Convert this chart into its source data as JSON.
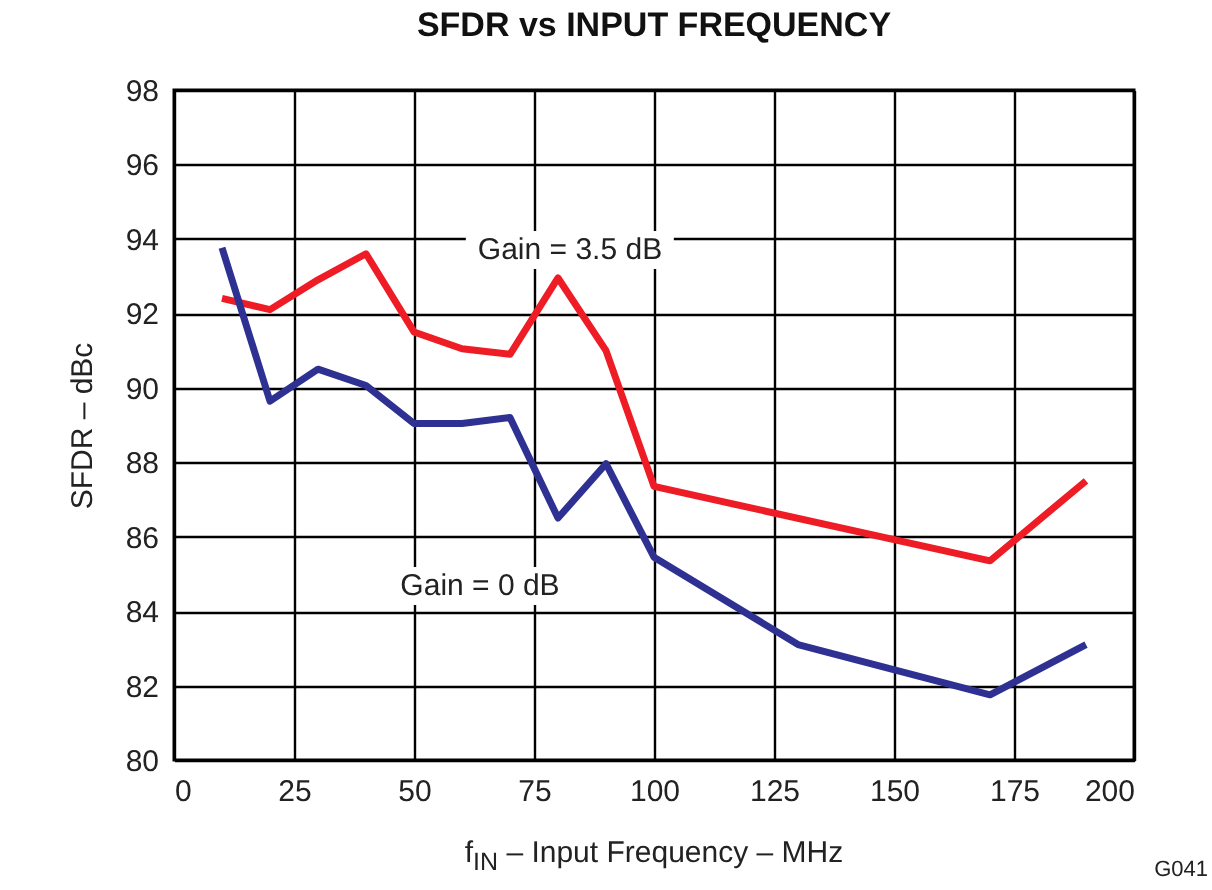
{
  "chart_data": {
    "type": "line",
    "title": "SFDR vs INPUT FREQUENCY",
    "xlabel": "f$_{IN}$ – Input Frequency – MHz",
    "ylabel": "SFDR – dBc",
    "x": [
      10,
      20,
      30,
      40,
      50,
      60,
      70,
      80,
      90,
      100,
      130,
      170,
      190
    ],
    "series": [
      {
        "color": "#ee1c25",
        "x": [
          10,
          20,
          30,
          40,
          50,
          60,
          70,
          80,
          90,
          100,
          170,
          190
        ],
        "values": [
          92.4,
          92.1,
          92.9,
          93.6,
          91.5,
          91.05,
          90.9,
          92.95,
          91.0,
          87.35,
          85.35,
          87.5
        ]
      },
      {
        "color": "#2e3192",
        "values": [
          93.76,
          89.64,
          90.5,
          90.06,
          89.04,
          89.04,
          89.2,
          86.5,
          87.96,
          85.45,
          83.1,
          81.75,
          83.1
        ]
      }
    ],
    "annotations": [
      "Gain = 3.5 dB",
      "Gain = 0 dB",
      "G041"
    ],
    "xlim": [
      0,
      200
    ],
    "xticks": [
      0,
      25,
      50,
      75,
      100,
      125,
      150,
      175,
      200
    ],
    "ylim": [
      80,
      98
    ],
    "yticks": [
      80,
      82,
      84,
      86,
      88,
      90,
      92,
      94,
      96,
      98
    ],
    "grid": true,
    "legend": false,
    "marker": "none",
    "line_style": "solid"
  }
}
